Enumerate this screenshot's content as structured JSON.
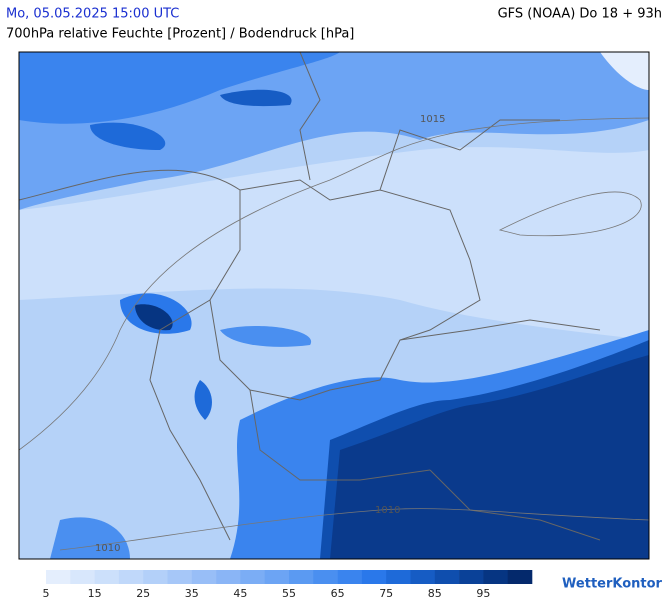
{
  "header": {
    "date": "Mo, 05.05.2025 15:00 UTC",
    "model": "GFS (NOAA) Do 18 + 93h",
    "subtitle": "700hPa relative Feuchte [Prozent] / Bodendruck [hPa]"
  },
  "map": {
    "isobar_labels": [
      "1015",
      "1010",
      "1010"
    ]
  },
  "legend": {
    "ticks": [
      5,
      15,
      25,
      35,
      45,
      55,
      65,
      75,
      85,
      95
    ],
    "colors": [
      "#e4eefd",
      "#d8e7fc",
      "#cce0fb",
      "#c0d8fa",
      "#b3d0f9",
      "#a6c7f8",
      "#98bef7",
      "#8ab5f6",
      "#7badf5",
      "#6ca4f4",
      "#5b9af2",
      "#4a8ff0",
      "#3a84ee",
      "#2a78ea",
      "#1e6ad9",
      "#165cc4",
      "#0f4eae",
      "#0a4198",
      "#063582",
      "#04296c"
    ]
  },
  "logo": "WetterKontor"
}
